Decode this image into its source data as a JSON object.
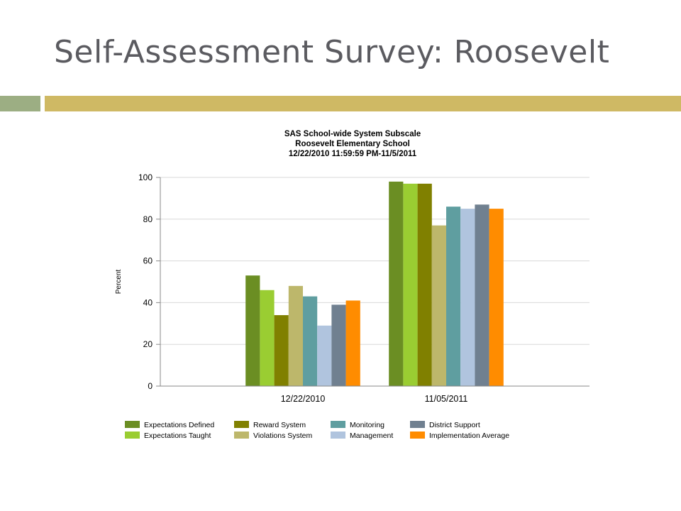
{
  "slide": {
    "title": "Self-Assessment Survey: Roosevelt"
  },
  "chart_data": {
    "type": "bar",
    "title": "SAS School-wide System Subscale",
    "subtitle": "Roosevelt Elementary School",
    "date_range": "12/22/2010 11:59:59 PM-11/5/2011",
    "ylabel": "Percent",
    "xlabel": "",
    "ylim": [
      0,
      100
    ],
    "yticks": [
      0,
      20,
      40,
      60,
      80,
      100
    ],
    "grid": true,
    "legend_position": "bottom",
    "categories": [
      "12/22/2010",
      "11/05/2011"
    ],
    "series": [
      {
        "name": "Expectations Defined",
        "color": "#6b8e23",
        "values": [
          53,
          98
        ]
      },
      {
        "name": "Expectations Taught",
        "color": "#9acd32",
        "values": [
          46,
          97
        ]
      },
      {
        "name": "Reward System",
        "color": "#808000",
        "values": [
          34,
          97
        ]
      },
      {
        "name": "Violations System",
        "color": "#bdb76b",
        "values": [
          48,
          77
        ]
      },
      {
        "name": "Monitoring",
        "color": "#5f9ea0",
        "values": [
          43,
          86
        ]
      },
      {
        "name": "Management",
        "color": "#b0c4de",
        "values": [
          29,
          85
        ]
      },
      {
        "name": "District Support",
        "color": "#708090",
        "values": [
          39,
          87
        ]
      },
      {
        "name": "Implementation Average",
        "color": "#ff8c00",
        "values": [
          41,
          85
        ]
      }
    ]
  }
}
